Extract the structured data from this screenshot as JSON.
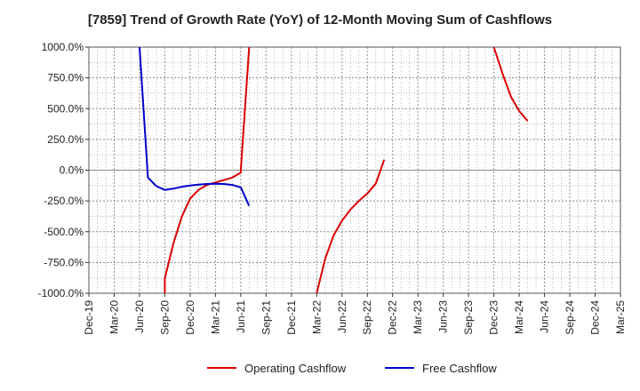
{
  "chart_data": {
    "type": "line",
    "title": "[7859]  Trend of Growth Rate (YoY) of 12-Month Moving Sum of Cashflows",
    "xlabel": "",
    "ylabel": "",
    "ylim": [
      -1000,
      1000
    ],
    "y_ticks": [
      "1000.0%",
      "750.0%",
      "500.0%",
      "250.0%",
      "0.0%",
      "-250.0%",
      "-500.0%",
      "-750.0%",
      "-1000.0%"
    ],
    "x_ticks": [
      "Dec-19",
      "Mar-20",
      "Jun-20",
      "Sep-20",
      "Dec-20",
      "Mar-21",
      "Jun-21",
      "Sep-21",
      "Dec-21",
      "Mar-22",
      "Jun-22",
      "Sep-22",
      "Dec-22",
      "Mar-23",
      "Jun-23",
      "Sep-23",
      "Dec-23",
      "Mar-24",
      "Jun-24",
      "Sep-24",
      "Dec-24",
      "Mar-25"
    ],
    "grid": true,
    "legend": "bottom-center",
    "series": [
      {
        "name": "Operating Cashflow",
        "color": "#dd0000",
        "segments": [
          [
            [
              "Sep-20",
              -1000
            ],
            [
              "Sep-20",
              -880
            ],
            [
              "Oct-20",
              -600
            ],
            [
              "Nov-20",
              -380
            ],
            [
              "Dec-20",
              -230
            ],
            [
              "Jan-21",
              -160
            ],
            [
              "Feb-21",
              -120
            ],
            [
              "Mar-21",
              -100
            ],
            [
              "Apr-21",
              -80
            ],
            [
              "May-21",
              -60
            ],
            [
              "Jun-21",
              -20
            ],
            [
              "Jun-21",
              0
            ],
            [
              "Jul-21",
              1000
            ]
          ],
          [
            [
              "Mar-22",
              -1000
            ],
            [
              "Apr-22",
              -720
            ],
            [
              "May-22",
              -530
            ],
            [
              "Jun-22",
              -410
            ],
            [
              "Jul-22",
              -320
            ],
            [
              "Aug-22",
              -250
            ],
            [
              "Sep-22",
              -190
            ],
            [
              "Oct-22",
              -110
            ],
            [
              "Nov-22",
              85
            ]
          ],
          [
            [
              "Dec-23",
              1000
            ],
            [
              "Jan-24",
              790
            ],
            [
              "Feb-24",
              600
            ],
            [
              "Mar-24",
              480
            ],
            [
              "Apr-24",
              400
            ]
          ]
        ]
      },
      {
        "name": "Free Cashflow",
        "color": "#0000cc",
        "segments": [
          [
            [
              "Jun-20",
              1000
            ],
            [
              "Jul-20",
              -60
            ],
            [
              "Aug-20",
              -130
            ],
            [
              "Sep-20",
              -160
            ],
            [
              "Oct-20",
              -150
            ],
            [
              "Nov-20",
              -135
            ],
            [
              "Dec-20",
              -125
            ],
            [
              "Jan-21",
              -118
            ],
            [
              "Feb-21",
              -112
            ],
            [
              "Mar-21",
              -110
            ],
            [
              "Apr-21",
              -112
            ],
            [
              "May-21",
              -120
            ],
            [
              "Jun-21",
              -140
            ],
            [
              "Jul-21",
              -290
            ]
          ]
        ]
      }
    ]
  }
}
